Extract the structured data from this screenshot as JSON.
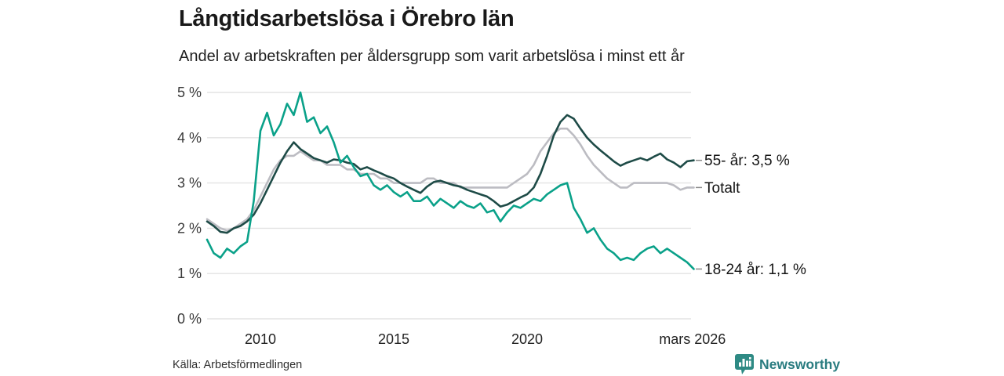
{
  "title": "Långtidsarbetslösa i Örebro län",
  "subtitle": "Andel av arbetskraften per åldersgrupp som varit arbetslösa i minst ett år",
  "source": "Källa: Arbetsförmedlingen",
  "branding": {
    "name": "Newsworthy",
    "icon": "bar-chart-pin-icon",
    "color": "#2e8a84"
  },
  "colors": {
    "grid": "#e3e3e3",
    "tick_text": "#3a3a3a",
    "label_text": "#141414",
    "label_dash": "#8a8a8a",
    "series_55": "#1e4b47",
    "series_total": "#bcbcc2",
    "series_1824": "#0aa189"
  },
  "chart_data": {
    "type": "line",
    "title": "Långtidsarbetslösa i Örebro län",
    "subtitle": "Andel av arbetskraften per åldersgrupp som varit arbetslösa i minst ett år",
    "xlabel": "",
    "ylabel": "",
    "ylim": [
      0,
      5
    ],
    "grid": "horizontal",
    "legend_position": "right-end-labels",
    "x_start": 2008.0,
    "x_step": 0.25,
    "x_end": 2026.25,
    "x_ticks": [
      {
        "value": 2010,
        "label": "2010"
      },
      {
        "value": 2015,
        "label": "2015"
      },
      {
        "value": 2020,
        "label": "2020"
      },
      {
        "value": 2026.2,
        "label": "mars 2026"
      }
    ],
    "y_ticks": [
      {
        "value": 5,
        "label": "5 %"
      },
      {
        "value": 4,
        "label": "4 %"
      },
      {
        "value": 3,
        "label": "3 %"
      },
      {
        "value": 2,
        "label": "2 %"
      },
      {
        "value": 1,
        "label": "1 %"
      },
      {
        "value": 0,
        "label": "0 %"
      }
    ],
    "series": [
      {
        "name": "totalt",
        "label": "Totalt",
        "color": "#bcbcc2",
        "values": [
          2.2,
          2.1,
          2.0,
          1.95,
          2.0,
          2.1,
          2.2,
          2.4,
          2.7,
          3.0,
          3.3,
          3.5,
          3.6,
          3.6,
          3.7,
          3.6,
          3.5,
          3.5,
          3.4,
          3.4,
          3.4,
          3.3,
          3.3,
          3.2,
          3.2,
          3.2,
          3.1,
          3.1,
          3.0,
          3.0,
          3.0,
          3.0,
          3.0,
          3.1,
          3.1,
          3.0,
          3.0,
          3.0,
          2.9,
          2.9,
          2.9,
          2.9,
          2.9,
          2.9,
          2.9,
          2.9,
          3.0,
          3.1,
          3.2,
          3.4,
          3.7,
          3.9,
          4.1,
          4.2,
          4.2,
          4.05,
          3.85,
          3.6,
          3.4,
          3.25,
          3.1,
          3.0,
          2.9,
          2.9,
          3.0,
          3.0,
          3.0,
          3.0,
          3.0,
          3.0,
          2.95,
          2.85,
          2.9,
          2.9
        ]
      },
      {
        "name": "55-ar",
        "label": "55- år: 3,5 %",
        "color": "#1e4b47",
        "values": [
          2.15,
          2.05,
          1.92,
          1.9,
          2.0,
          2.05,
          2.15,
          2.3,
          2.55,
          2.85,
          3.15,
          3.45,
          3.7,
          3.9,
          3.75,
          3.65,
          3.55,
          3.5,
          3.45,
          3.52,
          3.5,
          3.45,
          3.42,
          3.3,
          3.35,
          3.28,
          3.22,
          3.15,
          3.1,
          3.0,
          2.92,
          2.85,
          2.78,
          2.92,
          3.02,
          3.05,
          3.0,
          2.95,
          2.92,
          2.85,
          2.8,
          2.75,
          2.7,
          2.6,
          2.48,
          2.52,
          2.6,
          2.68,
          2.75,
          2.9,
          3.2,
          3.6,
          4.05,
          4.35,
          4.5,
          4.42,
          4.2,
          4.0,
          3.85,
          3.72,
          3.6,
          3.48,
          3.38,
          3.45,
          3.5,
          3.55,
          3.5,
          3.58,
          3.65,
          3.52,
          3.45,
          3.35,
          3.48,
          3.5
        ]
      },
      {
        "name": "18-24-ar",
        "label": "18-24 år: 1,1 %",
        "color": "#0aa189",
        "values": [
          1.75,
          1.45,
          1.35,
          1.55,
          1.45,
          1.6,
          1.7,
          2.6,
          4.15,
          4.55,
          4.05,
          4.3,
          4.75,
          4.5,
          5.0,
          4.35,
          4.45,
          4.1,
          4.25,
          3.9,
          3.45,
          3.6,
          3.35,
          3.15,
          3.2,
          2.95,
          2.85,
          2.95,
          2.8,
          2.7,
          2.8,
          2.6,
          2.6,
          2.7,
          2.5,
          2.65,
          2.55,
          2.45,
          2.6,
          2.5,
          2.45,
          2.55,
          2.35,
          2.4,
          2.15,
          2.35,
          2.5,
          2.45,
          2.55,
          2.65,
          2.6,
          2.75,
          2.85,
          2.95,
          3.0,
          2.45,
          2.2,
          1.9,
          2.0,
          1.75,
          1.55,
          1.45,
          1.3,
          1.35,
          1.3,
          1.45,
          1.55,
          1.6,
          1.45,
          1.55,
          1.45,
          1.35,
          1.25,
          1.1
        ]
      }
    ]
  }
}
